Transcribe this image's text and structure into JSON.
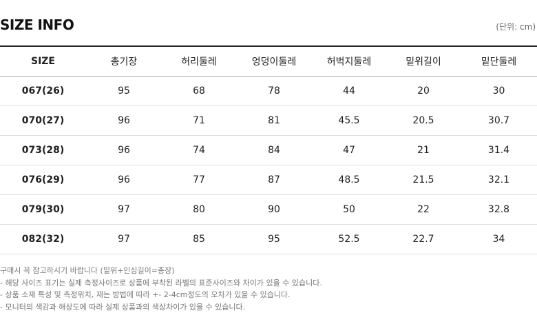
{
  "header": {
    "title": "SIZE INFO",
    "unit": "(단위: cm)"
  },
  "table": {
    "columns": [
      "SIZE",
      "총기장",
      "허리둘레",
      "엉덩이둘레",
      "허벅지둘레",
      "밑위길이",
      "밑단둘레"
    ],
    "rows": [
      [
        "067(26)",
        "95",
        "68",
        "78",
        "44",
        "20",
        "30"
      ],
      [
        "070(27)",
        "96",
        "71",
        "81",
        "45.5",
        "20.5",
        "30.7"
      ],
      [
        "073(28)",
        "96",
        "74",
        "84",
        "47",
        "21",
        "31.4"
      ],
      [
        "076(29)",
        "96",
        "77",
        "87",
        "48.5",
        "21.5",
        "32.1"
      ],
      [
        "079(30)",
        "97",
        "80",
        "90",
        "50",
        "22",
        "32.8"
      ],
      [
        "082(32)",
        "97",
        "85",
        "95",
        "52.5",
        "22.7",
        "34"
      ]
    ]
  },
  "notes": [
    "구매시 꼭 참고하시기 바랍니다 (밑위+인심길이=총장)",
    "- 해당 사이즈 표기는 실제 측정사이즈로 상품에 부착된 라벨의 표준사이즈와 차이가 있을 수 있습니다.",
    "- 상품 소재 특성 및 측정위치, 재는 방법에 따라 +- 2-4cm정도의 오차가 있을 수 있습니다.",
    "- 모니터의 색감과 해상도에 따라 실제 상품과의 색상차이가 있을 수 있습니다."
  ]
}
